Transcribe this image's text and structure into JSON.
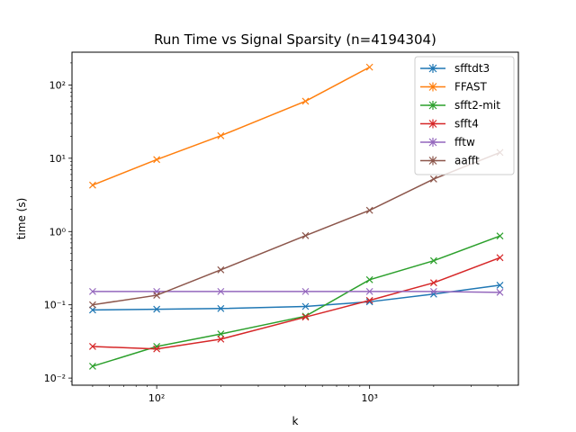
{
  "chart_data": {
    "type": "line",
    "title": "Run Time vs Signal Sparsity (n=4194304)",
    "xlabel": "k",
    "ylabel": "time (s)",
    "xscale": "log",
    "yscale": "log",
    "xlim": [
      40,
      5000
    ],
    "ylim": [
      0.008,
      280
    ],
    "x_ticks": [
      {
        "value": 100,
        "label": "10²"
      },
      {
        "value": 1000,
        "label": "10³"
      }
    ],
    "y_ticks": [
      {
        "value": 0.01,
        "label": "10⁻²"
      },
      {
        "value": 0.1,
        "label": "10⁻¹"
      },
      {
        "value": 1,
        "label": "10⁰"
      },
      {
        "value": 10,
        "label": "10¹"
      },
      {
        "value": 100,
        "label": "10²"
      }
    ],
    "legend_position": "top-right",
    "series": [
      {
        "name": "sfftdt3",
        "color": "#1f77b4",
        "x": [
          50,
          100,
          200,
          500,
          1000,
          2000,
          4096
        ],
        "y": [
          0.085,
          0.087,
          0.089,
          0.095,
          0.11,
          0.14,
          0.185
        ]
      },
      {
        "name": "FFAST",
        "color": "#ff7f0e",
        "x": [
          50,
          100,
          200,
          500,
          1000
        ],
        "y": [
          4.3,
          9.6,
          20.3,
          60,
          175
        ]
      },
      {
        "name": "sfft2-mit",
        "color": "#2ca02c",
        "x": [
          50,
          100,
          200,
          500,
          1000,
          2000,
          4096
        ],
        "y": [
          0.0145,
          0.027,
          0.04,
          0.07,
          0.22,
          0.4,
          0.87
        ]
      },
      {
        "name": "sfft4",
        "color": "#d62728",
        "x": [
          50,
          100,
          200,
          500,
          1000,
          2000,
          4096
        ],
        "y": [
          0.027,
          0.025,
          0.034,
          0.068,
          0.115,
          0.2,
          0.44
        ]
      },
      {
        "name": "fftw",
        "color": "#9467bd",
        "x": [
          50,
          100,
          200,
          500,
          1000,
          2000,
          4096
        ],
        "y": [
          0.152,
          0.152,
          0.152,
          0.152,
          0.152,
          0.152,
          0.148
        ]
      },
      {
        "name": "aafft",
        "color": "#8c564b",
        "x": [
          50,
          100,
          200,
          500,
          1000,
          2000,
          4096
        ],
        "y": [
          0.1,
          0.135,
          0.3,
          0.88,
          1.95,
          5.2,
          12
        ]
      }
    ]
  }
}
